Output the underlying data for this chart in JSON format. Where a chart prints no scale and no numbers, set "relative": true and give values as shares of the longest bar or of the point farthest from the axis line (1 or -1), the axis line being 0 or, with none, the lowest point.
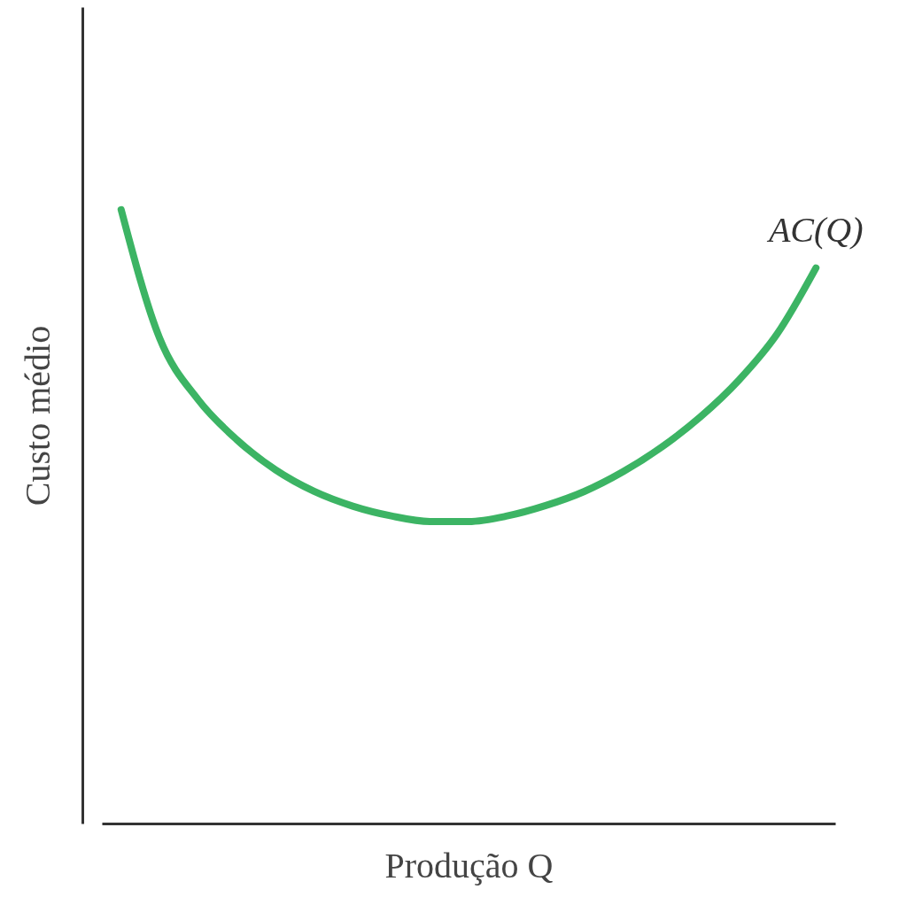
{
  "chart_data": {
    "type": "line",
    "relative": true,
    "xlabel": "Produção Q",
    "ylabel": "Custo médio",
    "categories": [
      null,
      null,
      null,
      null,
      null,
      null,
      null,
      null,
      null,
      null,
      null,
      null,
      null,
      null,
      null,
      null,
      null,
      null,
      null
    ],
    "series": [
      {
        "name": "AC(Q)",
        "color": "#3cb464",
        "values": [
          1,
          0.79,
          0.69,
          0.625,
          0.576,
          0.541,
          0.517,
          0.501,
          0.492,
          0.492,
          0.501,
          0.518,
          0.541,
          0.573,
          0.613,
          0.662,
          0.722,
          0.798,
          0.905
        ]
      }
    ]
  }
}
